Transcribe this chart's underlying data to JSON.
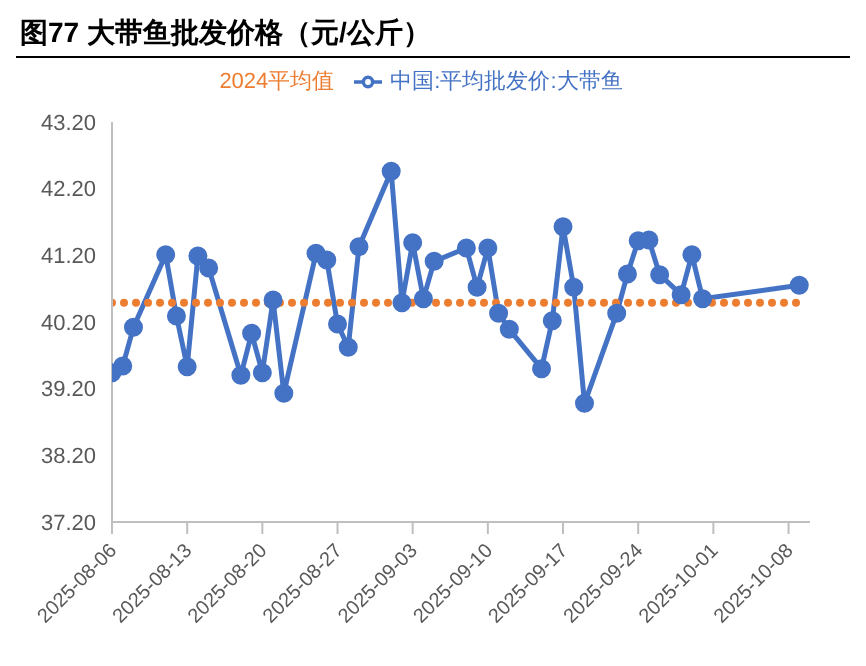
{
  "chart_data": {
    "type": "line",
    "title": "图77 大带鱼批发价格（元/公斤）",
    "legend": "top",
    "grid": false,
    "xlim": [
      "2025-08-06",
      "2025-10-10"
    ],
    "xticks": [
      "2025-08-06",
      "2025-08-13",
      "2025-08-20",
      "2025-08-27",
      "2025-09-03",
      "2025-09-10",
      "2025-09-17",
      "2025-09-24",
      "2025-10-01",
      "2025-10-08"
    ],
    "ylim": [
      37.2,
      43.2
    ],
    "yticks": [
      {
        "value": 37.2,
        "label": "37.20"
      },
      {
        "value": 38.2,
        "label": "38.20"
      },
      {
        "value": 39.2,
        "label": "39.20"
      },
      {
        "value": 40.2,
        "label": "40.20"
      },
      {
        "value": 41.2,
        "label": "41.20"
      },
      {
        "value": 42.2,
        "label": "42.20"
      },
      {
        "value": 43.2,
        "label": "43.20"
      }
    ],
    "series": [
      {
        "name": "中国:平均批发价:大带鱼",
        "color": "#4472c4",
        "marker": "circle",
        "line_style": "solid",
        "x": [
          "2025-08-06",
          "2025-08-07",
          "2025-08-08",
          "2025-08-11",
          "2025-08-12",
          "2025-08-13",
          "2025-08-14",
          "2025-08-15",
          "2025-08-18",
          "2025-08-19",
          "2025-08-20",
          "2025-08-21",
          "2025-08-22",
          "2025-08-25",
          "2025-08-26",
          "2025-08-27",
          "2025-08-28",
          "2025-08-29",
          "2025-09-01",
          "2025-09-02",
          "2025-09-03",
          "2025-09-04",
          "2025-09-05",
          "2025-09-08",
          "2025-09-09",
          "2025-09-10",
          "2025-09-11",
          "2025-09-12",
          "2025-09-15",
          "2025-09-16",
          "2025-09-17",
          "2025-09-18",
          "2025-09-19",
          "2025-09-22",
          "2025-09-23",
          "2025-09-24",
          "2025-09-25",
          "2025-09-26",
          "2025-09-28",
          "2025-09-29",
          "2025-09-30",
          "2025-10-09"
        ],
        "values": [
          39.44,
          39.54,
          40.12,
          41.21,
          40.29,
          39.53,
          41.19,
          41.01,
          39.4,
          40.03,
          39.44,
          40.53,
          39.13,
          41.23,
          41.13,
          40.17,
          39.82,
          41.33,
          42.46,
          40.49,
          41.39,
          40.55,
          41.11,
          41.31,
          40.72,
          41.31,
          40.33,
          40.09,
          39.5,
          40.22,
          41.63,
          40.72,
          38.98,
          40.33,
          40.92,
          41.42,
          41.43,
          40.91,
          40.61,
          41.21,
          40.55,
          40.75
        ]
      },
      {
        "name": "2024平均值",
        "color": "#ed7d31",
        "marker": "none",
        "line_style": "dotted",
        "x": [
          "2025-08-06",
          "2025-10-09"
        ],
        "values": [
          40.49,
          40.49
        ]
      }
    ]
  }
}
